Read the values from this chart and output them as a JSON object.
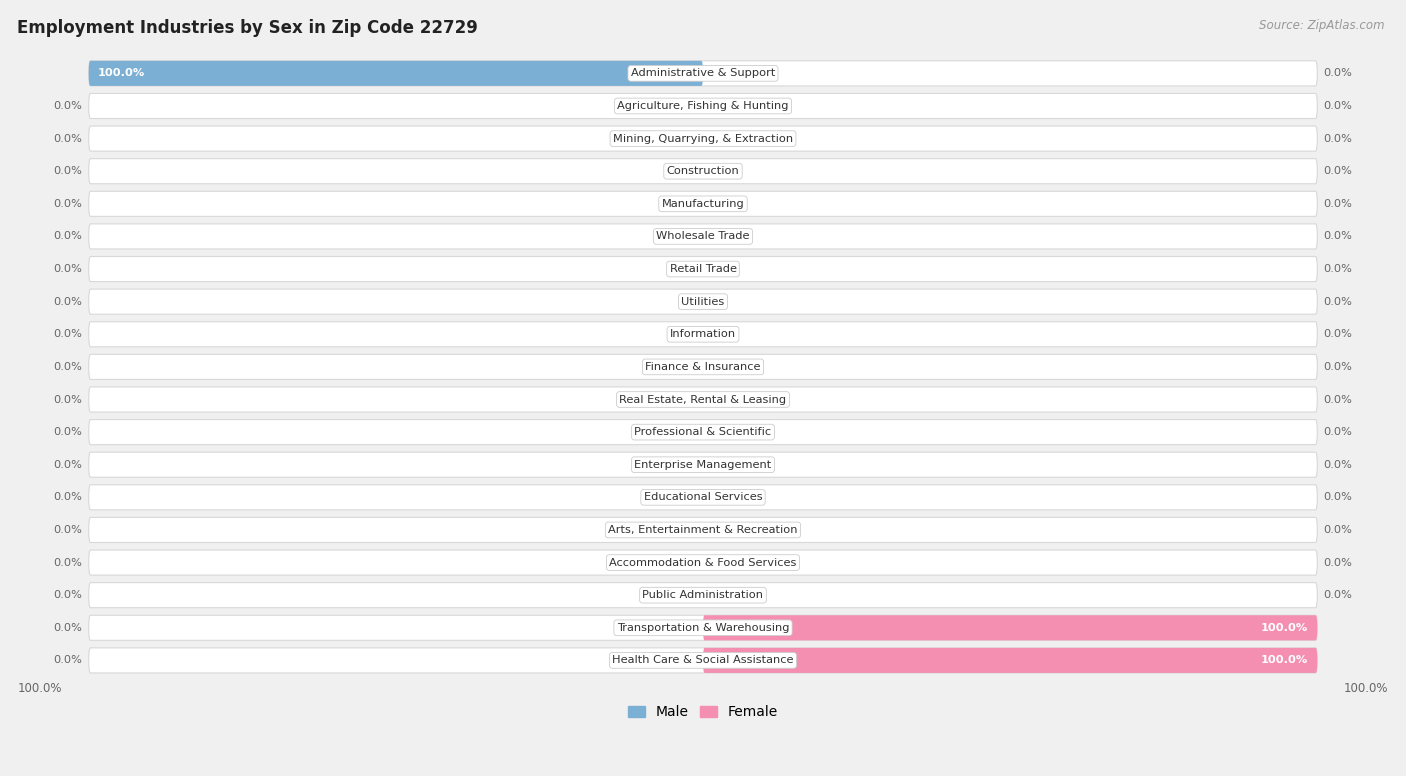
{
  "title": "Employment Industries by Sex in Zip Code 22729",
  "source": "Source: ZipAtlas.com",
  "categories": [
    "Administrative & Support",
    "Agriculture, Fishing & Hunting",
    "Mining, Quarrying, & Extraction",
    "Construction",
    "Manufacturing",
    "Wholesale Trade",
    "Retail Trade",
    "Utilities",
    "Information",
    "Finance & Insurance",
    "Real Estate, Rental & Leasing",
    "Professional & Scientific",
    "Enterprise Management",
    "Educational Services",
    "Arts, Entertainment & Recreation",
    "Accommodation & Food Services",
    "Public Administration",
    "Transportation & Warehousing",
    "Health Care & Social Assistance"
  ],
  "male_values": [
    100.0,
    0.0,
    0.0,
    0.0,
    0.0,
    0.0,
    0.0,
    0.0,
    0.0,
    0.0,
    0.0,
    0.0,
    0.0,
    0.0,
    0.0,
    0.0,
    0.0,
    0.0,
    0.0
  ],
  "female_values": [
    0.0,
    0.0,
    0.0,
    0.0,
    0.0,
    0.0,
    0.0,
    0.0,
    0.0,
    0.0,
    0.0,
    0.0,
    0.0,
    0.0,
    0.0,
    0.0,
    0.0,
    100.0,
    100.0
  ],
  "male_color": "#7bafd4",
  "female_color": "#f48fb1",
  "male_label": "Male",
  "female_label": "Female",
  "bg_color": "#f0f0f0",
  "row_color": "#ffffff",
  "row_edge_color": "#d8d8d8",
  "value_color": "#666666",
  "title_color": "#222222",
  "source_color": "#999999",
  "center_label_bg": "#ffffff",
  "center_label_edge": "#cccccc"
}
